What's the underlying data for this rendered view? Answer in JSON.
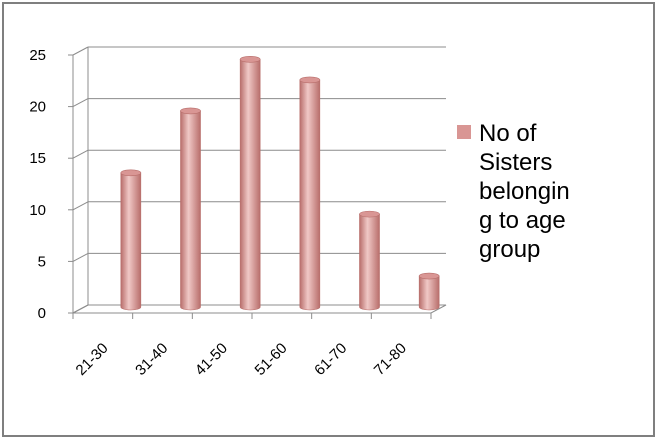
{
  "chart_data": {
    "type": "bar",
    "style": "3d-cylinder",
    "categories": [
      "21-30",
      "31-40",
      "41-50",
      "51-60",
      "61-70",
      "71-80"
    ],
    "series": [
      {
        "name": "No of Sisters belonging to age group",
        "values": [
          13,
          19,
          24,
          22,
          9,
          3
        ]
      }
    ],
    "title": "",
    "xlabel": "",
    "ylabel": "",
    "ylim": [
      0,
      25
    ],
    "yticks": [
      0,
      5,
      10,
      15,
      20,
      25
    ],
    "grid": true,
    "legend_position": "right",
    "legend_lines": [
      "No of",
      "Sisters",
      "belongin",
      "g to age",
      "group"
    ],
    "colors": {
      "bar": "#d99694",
      "bar_dark": "#b86e6b",
      "bar_light": "#f0c8c6",
      "grid": "#8c8c8c",
      "frame": "#7f7f7f"
    }
  }
}
